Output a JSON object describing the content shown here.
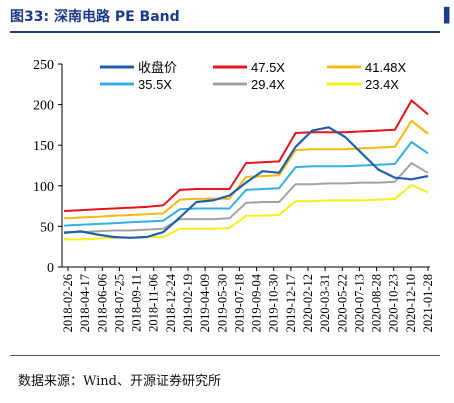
{
  "title": "图33:  深南电路 PE Band",
  "source": "数据来源：Wind、开源证券研究所",
  "chart_data": {
    "type": "line",
    "title": "深南电路 PE Band",
    "ylim": [
      0,
      250
    ],
    "yticks": [
      0,
      50,
      100,
      150,
      200,
      250
    ],
    "xticks": [
      "2018-02-26",
      "2018-04-17",
      "2018-06-06",
      "2018-07-25",
      "2018-09-11",
      "2018-11-06",
      "2018-12-24",
      "2019-02-19",
      "2019-04-09",
      "2019-05-30",
      "2019-07-18",
      "2019-09-04",
      "2019-10-30",
      "2019-12-17",
      "2020-02-12",
      "2020-03-31",
      "2020-05-22",
      "2020-07-13",
      "2020-08-28",
      "2020-10-23",
      "2020-12-10",
      "2021-01-28"
    ],
    "x": [
      "2018-02-26",
      "2018-04-17",
      "2018-06-06",
      "2018-07-25",
      "2018-09-11",
      "2018-11-06",
      "2018-12-24",
      "2019-02-19",
      "2019-04-09",
      "2019-05-30",
      "2019-07-18",
      "2019-09-04",
      "2019-10-30",
      "2019-12-17",
      "2020-02-12",
      "2020-03-31",
      "2020-05-22",
      "2020-07-13",
      "2020-08-28",
      "2020-10-23",
      "2020-12-10",
      "2021-01-28",
      "2021-02-26"
    ],
    "legend": "top",
    "grid": false,
    "series": [
      {
        "name": "收盘价",
        "color": "#1f5fad",
        "width": 2.2,
        "values": [
          42,
          44,
          40,
          37,
          36,
          37,
          43,
          61,
          80,
          82,
          88,
          104,
          118,
          116,
          148,
          168,
          172,
          160,
          140,
          120,
          110,
          108,
          112
        ]
      },
      {
        "name": "47.5X",
        "color": "#e8131b",
        "width": 2,
        "values": [
          69,
          70,
          71,
          72,
          73,
          74,
          76,
          95,
          96,
          96,
          96,
          128,
          129,
          130,
          165,
          166,
          166,
          166,
          167,
          168,
          169,
          205,
          188
        ]
      },
      {
        "name": "41.48X",
        "color": "#f7b90f",
        "width": 2,
        "values": [
          60,
          61,
          62,
          63,
          64,
          65,
          66,
          83,
          84,
          84,
          84,
          111,
          112,
          113,
          144,
          145,
          145,
          145,
          146,
          147,
          148,
          180,
          164
        ]
      },
      {
        "name": "35.5X",
        "color": "#34aee4",
        "width": 2,
        "values": [
          51,
          52,
          53,
          54,
          55,
          56,
          57,
          71,
          72,
          72,
          72,
          95,
          96,
          97,
          123,
          124,
          124,
          124,
          125,
          126,
          127,
          154,
          140
        ]
      },
      {
        "name": "29.4X",
        "color": "#a3a3a3",
        "width": 2,
        "values": [
          43,
          43,
          44,
          45,
          45,
          46,
          47,
          59,
          59,
          59,
          60,
          79,
          80,
          80,
          102,
          102,
          103,
          103,
          104,
          104,
          105,
          128,
          116
        ]
      },
      {
        "name": "23.4X",
        "color": "#f5ef1a",
        "width": 2,
        "values": [
          34,
          34,
          35,
          36,
          36,
          37,
          37,
          47,
          47,
          47,
          48,
          63,
          63,
          64,
          81,
          81,
          82,
          82,
          82,
          83,
          84,
          101,
          92
        ]
      }
    ]
  }
}
